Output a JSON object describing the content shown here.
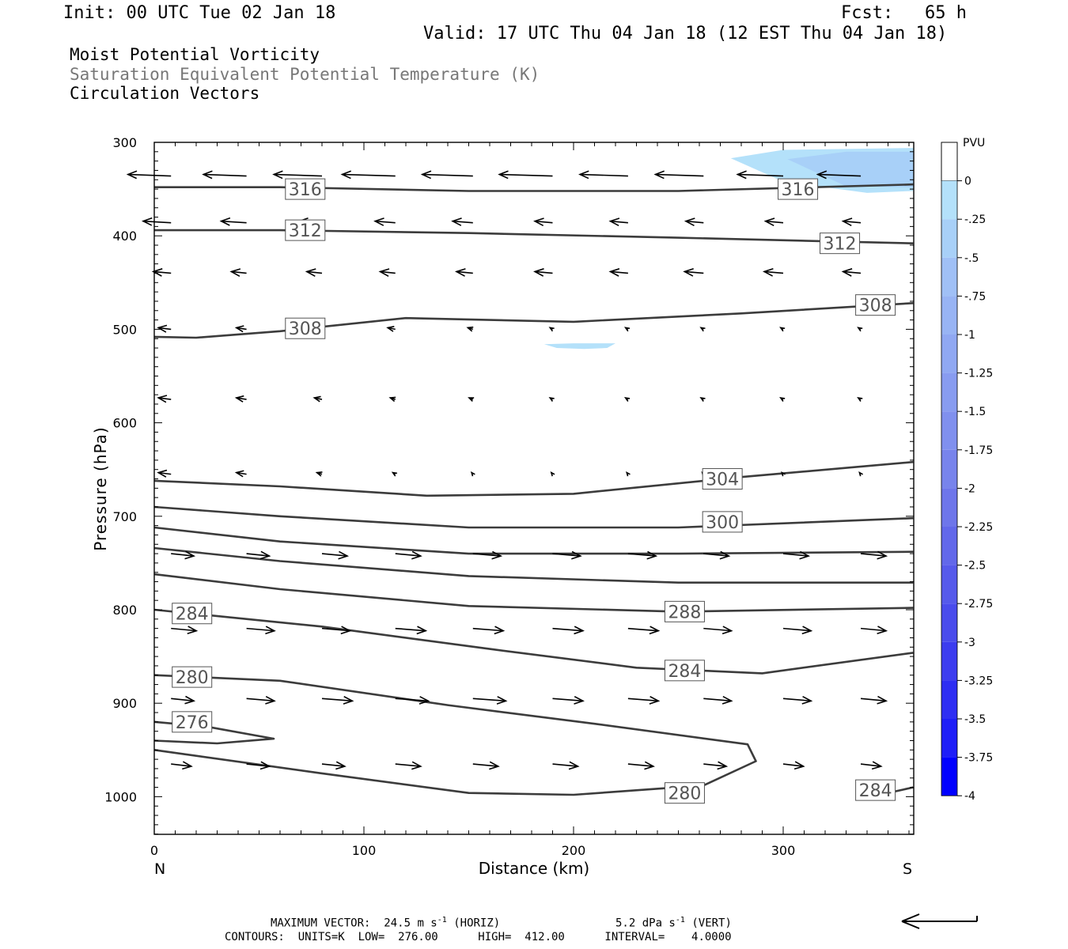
{
  "header": {
    "init": "Init: 00 UTC Tue 02 Jan 18",
    "fcst": "Fcst:   65 h",
    "valid": "Valid: 17 UTC Thu 04 Jan 18 (12 EST Thu 04 Jan 18)"
  },
  "fields": {
    "line1": "Moist Potential Vorticity",
    "line2": "Saturation Equivalent Potential Temperature (K)",
    "line3": "Circulation Vectors"
  },
  "footer": {
    "max_vector_label": "MAXIMUM VECTOR:",
    "horiz_value": "24.5 m s",
    "horiz_unit": "-1",
    "horiz_tag": "(HORIZ)",
    "vert_value": "5.2 dPa s",
    "vert_unit": "-1",
    "vert_tag": "(VERT)",
    "contours": "CONTOURS:  UNITS=K  LOW=  276.00      HIGH=  412.00      INTERVAL=    4.0000"
  },
  "colors": {
    "contour": "#3c3c3c",
    "pv_light": "#b4e1fa",
    "pv_mid": "#a0c8f8",
    "pv_dark": "#0000ff"
  },
  "chart_data": {
    "type": "cross-section",
    "xlabel": "Distance (km)",
    "ylabel": "Pressure (hPa)",
    "xlim": [
      0,
      362
    ],
    "ylim": [
      1040,
      300
    ],
    "x_ticks": [
      0,
      100,
      200,
      300
    ],
    "y_ticks": [
      300,
      400,
      500,
      600,
      700,
      800,
      900,
      1000
    ],
    "x_end_labels": {
      "left": "N",
      "right": "S"
    },
    "colorbar": {
      "title": "PVU",
      "labels": [
        "0",
        "-.25",
        "-.5",
        "-.75",
        "-1",
        "-1.25",
        "-1.5",
        "-1.75",
        "-2",
        "-2.25",
        "-2.5",
        "-2.75",
        "-3",
        "-3.25",
        "-3.5",
        "-3.75",
        "-4"
      ],
      "colors": [
        "#ffffff",
        "#b4e1fa",
        "#a8d0f8",
        "#a0c0f6",
        "#98b4f4",
        "#90a8f2",
        "#889cf0",
        "#8090ee",
        "#7884ec",
        "#6e76ea",
        "#6268ea",
        "#565aeb",
        "#4a4cec",
        "#3c3cef",
        "#2e2ef3",
        "#1e1ef8",
        "#0000ff"
      ]
    },
    "contours": [
      {
        "theta": 316,
        "points": [
          [
            0,
            348
          ],
          [
            60,
            348
          ],
          [
            150,
            352
          ],
          [
            250,
            352
          ],
          [
            362,
            345
          ]
        ],
        "labels": [
          [
            72,
            350
          ],
          [
            307,
            350
          ]
        ]
      },
      {
        "theta": 312,
        "points": [
          [
            0,
            394
          ],
          [
            60,
            394
          ],
          [
            150,
            397
          ],
          [
            250,
            402
          ],
          [
            362,
            408
          ]
        ],
        "labels": [
          [
            72,
            394
          ],
          [
            327,
            408
          ]
        ]
      },
      {
        "theta": 308,
        "points": [
          [
            0,
            508
          ],
          [
            20,
            509
          ],
          [
            60,
            502
          ],
          [
            120,
            488
          ],
          [
            200,
            492
          ],
          [
            280,
            483
          ],
          [
            362,
            472
          ]
        ],
        "labels": [
          [
            72,
            499
          ],
          [
            344,
            474
          ]
        ]
      },
      {
        "theta": 304,
        "points": [
          [
            0,
            662
          ],
          [
            60,
            668
          ],
          [
            130,
            678
          ],
          [
            200,
            676
          ],
          [
            280,
            658
          ],
          [
            362,
            642
          ]
        ],
        "labels": [
          [
            271,
            660
          ]
        ]
      },
      {
        "theta": 300,
        "points": [
          [
            0,
            690
          ],
          [
            60,
            700
          ],
          [
            150,
            712
          ],
          [
            250,
            712
          ],
          [
            362,
            702
          ]
        ],
        "labels": [
          [
            271,
            706
          ]
        ]
      },
      {
        "theta": 296,
        "points": [
          [
            0,
            712
          ],
          [
            60,
            727
          ],
          [
            150,
            740
          ],
          [
            250,
            740
          ],
          [
            362,
            738
          ]
        ],
        "labels": []
      },
      {
        "theta": 292,
        "points": [
          [
            0,
            734
          ],
          [
            60,
            748
          ],
          [
            150,
            764
          ],
          [
            250,
            771
          ],
          [
            362,
            771
          ]
        ],
        "labels": []
      },
      {
        "theta": 288,
        "points": [
          [
            0,
            762
          ],
          [
            60,
            778
          ],
          [
            150,
            796
          ],
          [
            250,
            802
          ],
          [
            362,
            798
          ]
        ],
        "labels": [
          [
            253,
            802
          ]
        ]
      },
      {
        "theta": 284,
        "points": [
          [
            0,
            800
          ],
          [
            80,
            818
          ],
          [
            160,
            842
          ],
          [
            230,
            862
          ],
          [
            290,
            868
          ],
          [
            362,
            846
          ]
        ],
        "labels": [
          [
            18,
            804
          ],
          [
            253,
            865
          ]
        ]
      },
      {
        "theta": 280,
        "points": [
          [
            0,
            870
          ],
          [
            60,
            876
          ],
          [
            140,
            902
          ],
          [
            210,
            922
          ],
          [
            283,
            944
          ],
          [
            287,
            962
          ],
          [
            262,
            988
          ],
          [
            200,
            998
          ],
          [
            150,
            996
          ],
          [
            80,
            975
          ],
          [
            0,
            950
          ]
        ],
        "labels": [
          [
            18,
            872
          ],
          [
            253,
            996
          ]
        ]
      },
      {
        "theta": 276,
        "points": [
          [
            0,
            940
          ],
          [
            30,
            943
          ],
          [
            57,
            938
          ],
          [
            25,
            925
          ],
          [
            0,
            920
          ]
        ],
        "labels": [
          [
            18,
            920
          ]
        ]
      },
      {
        "theta": 284,
        "points": [
          [
            350,
            996
          ],
          [
            362,
            990
          ]
        ],
        "labels": [
          [
            344,
            993
          ]
        ]
      }
    ],
    "contour_label_values": [
      "316",
      "316",
      "312",
      "312",
      "308",
      "308",
      "304",
      "300",
      "288",
      "284",
      "284",
      "280",
      "280",
      "276",
      "284"
    ],
    "pv_regions": [
      {
        "level": "-.25",
        "points": [
          [
            275,
            317
          ],
          [
            300,
            308
          ],
          [
            362,
            306
          ],
          [
            362,
            352
          ],
          [
            340,
            354
          ],
          [
            300,
            342
          ]
        ]
      },
      {
        "level": "-.5",
        "points": [
          [
            302,
            318
          ],
          [
            330,
            310
          ],
          [
            362,
            310
          ],
          [
            362,
            348
          ],
          [
            330,
            347
          ]
        ]
      },
      {
        "level": "-.25",
        "points": [
          [
            186,
            516
          ],
          [
            200,
            515
          ],
          [
            220,
            515
          ],
          [
            216,
            520
          ],
          [
            205,
            521
          ],
          [
            192,
            520
          ]
        ]
      }
    ]
  }
}
